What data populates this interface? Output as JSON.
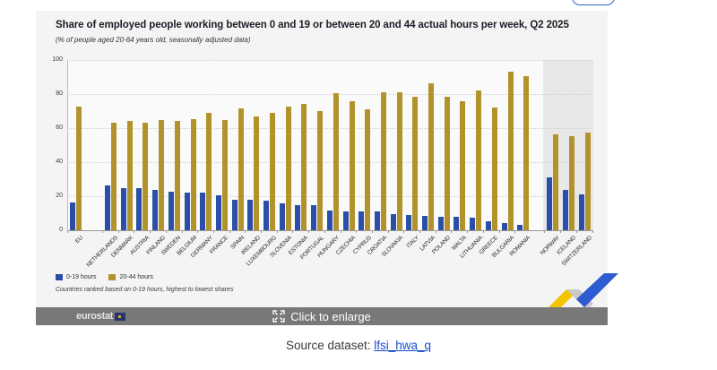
{
  "page": {
    "source_prefix": "Source dataset:",
    "source_link": "lfsi_hwa_q"
  },
  "overlay_bar": {
    "brand": "eurostat",
    "cta": "Click to enlarge"
  },
  "chart": {
    "title": "Share of employed people working between 0 and 19 or between 20 and 44 actual hours per week, Q2 2025",
    "subtitle": "(% of people aged 20-64 years old, seasonally adjusted data)",
    "footnote": "Countries ranked based on 0-19 hours,  highest to lowest shares",
    "legend": [
      {
        "label": "0-19 hours",
        "color": "#2b4ea8"
      },
      {
        "label": "20-44 hours",
        "color": "#b2932b"
      }
    ]
  },
  "chart_data": {
    "type": "bar",
    "title": "Share of employed people working between 0 and 19 or between 20 and 44 actual hours per week, Q2 2025",
    "subtitle": "(% of people aged 20-64 years old, seasonally adjusted data)",
    "ylim": [
      0,
      100
    ],
    "yticks": [
      0,
      20,
      40,
      60,
      80,
      100
    ],
    "grid": true,
    "legend_position": "bottom-left",
    "categories": [
      "EU",
      "NETHERLANDS",
      "DENMARK",
      "AUSTRIA",
      "FINLAND",
      "SWEDEN",
      "BELGIUM",
      "GERMANY",
      "FRANCE",
      "SPAIN",
      "IRELAND",
      "LUXEMBOURG",
      "SLOVENIA",
      "ESTONIA",
      "PORTUGAL",
      "HUNGARY",
      "CZECHIA",
      "CYPRUS",
      "CROATIA",
      "SLOVAKIA",
      "ITALY",
      "LATVIA",
      "POLAND",
      "MALTA",
      "LITHUANIA",
      "GREECE",
      "BULGARIA",
      "ROMANIA",
      "NORWAY",
      "ICELAND",
      "SWITZERLAND"
    ],
    "series": [
      {
        "name": "0-19 hours",
        "color": "#2b4ea8",
        "values": [
          16.5,
          26.5,
          25,
          24.5,
          23.5,
          22.5,
          22,
          22,
          20.5,
          18,
          17.8,
          17.4,
          15.6,
          15,
          14.6,
          11.4,
          11.2,
          11,
          10.8,
          9.6,
          8.7,
          8.4,
          8.1,
          7.9,
          7.6,
          5.5,
          4.4,
          3,
          31,
          23.5,
          21
        ]
      },
      {
        "name": "20-44 hours",
        "color": "#b2932b",
        "values": [
          72.5,
          63,
          64,
          63,
          65,
          64,
          65.5,
          69,
          65,
          71.5,
          67,
          69,
          72.5,
          74,
          70,
          80.5,
          76,
          71,
          81,
          81,
          78.5,
          86.5,
          78.5,
          76,
          82,
          72,
          93,
          90.5,
          56.5,
          55.5,
          57.5
        ]
      }
    ],
    "highlight_band": {
      "categories": [
        "NORWAY",
        "ICELAND",
        "SWITZERLAND"
      ],
      "color": "#e8e8e8"
    },
    "ranking_note": "Countries ranked based on 0-19 hours, highest to lowest shares"
  }
}
